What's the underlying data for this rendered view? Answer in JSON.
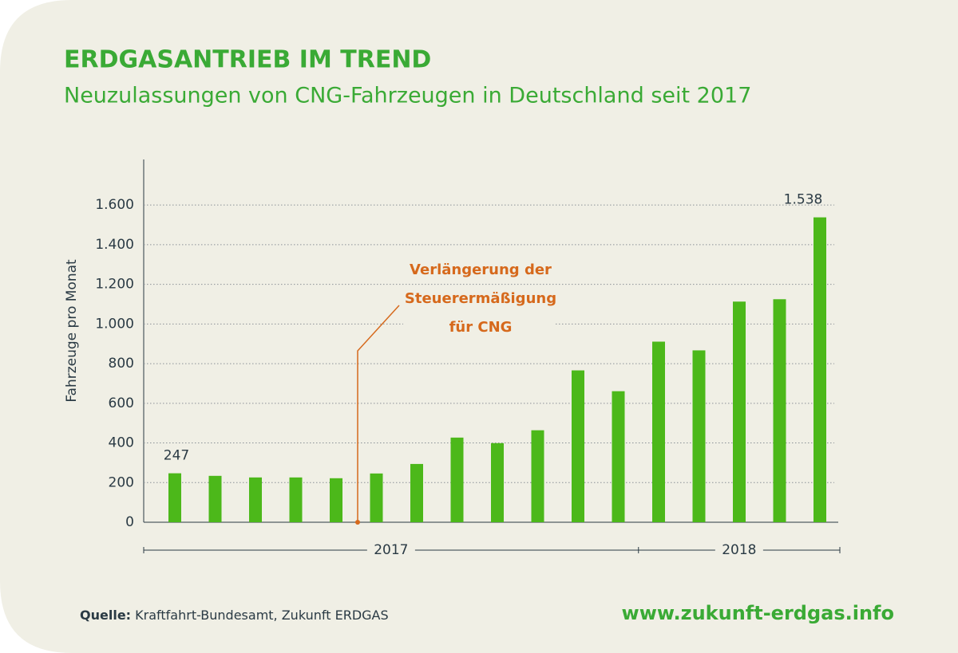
{
  "chart_data": {
    "type": "bar",
    "title": "ERDGASANTRIEB IM TREND",
    "subtitle": "Neuzulassungen von CNG-Fahrzeugen in Deutschland seit 2017",
    "y_label": "Fahrzeuge pro Monat",
    "categories": [
      null,
      null,
      null,
      null,
      null,
      null,
      null,
      null,
      null,
      null,
      null,
      null,
      null,
      null,
      null,
      null,
      null
    ],
    "values": [
      247,
      234,
      226,
      226,
      222,
      246,
      294,
      427,
      399,
      464,
      766,
      661,
      911,
      867,
      1113,
      1125,
      1538
    ],
    "value_labels": [
      "247",
      null,
      null,
      null,
      null,
      null,
      null,
      null,
      null,
      null,
      null,
      null,
      null,
      null,
      null,
      null,
      "1.538"
    ],
    "color": "#4cb81a",
    "ylim": [
      0,
      1830
    ],
    "yticks": [
      0,
      200,
      400,
      600,
      800,
      {
        "value": 1000,
        "label": "1.000"
      },
      {
        "value": 1200,
        "label": "1.200"
      },
      {
        "value": 1400,
        "label": "1.400"
      },
      {
        "value": 1600,
        "label": "1.600"
      }
    ],
    "grid": true,
    "groups": [
      {
        "label": "2017",
        "count": 12
      },
      {
        "label": "2018",
        "count": 5
      }
    ],
    "annotation": [
      "Verlängerung der",
      "Steuerermäßigung",
      "für CNG"
    ],
    "source_label": "Quelle:",
    "source": "Kraftfahrt-Bundesamt, Zukunft ERDGAS",
    "website": "www.zukunft-erdgas.info"
  }
}
